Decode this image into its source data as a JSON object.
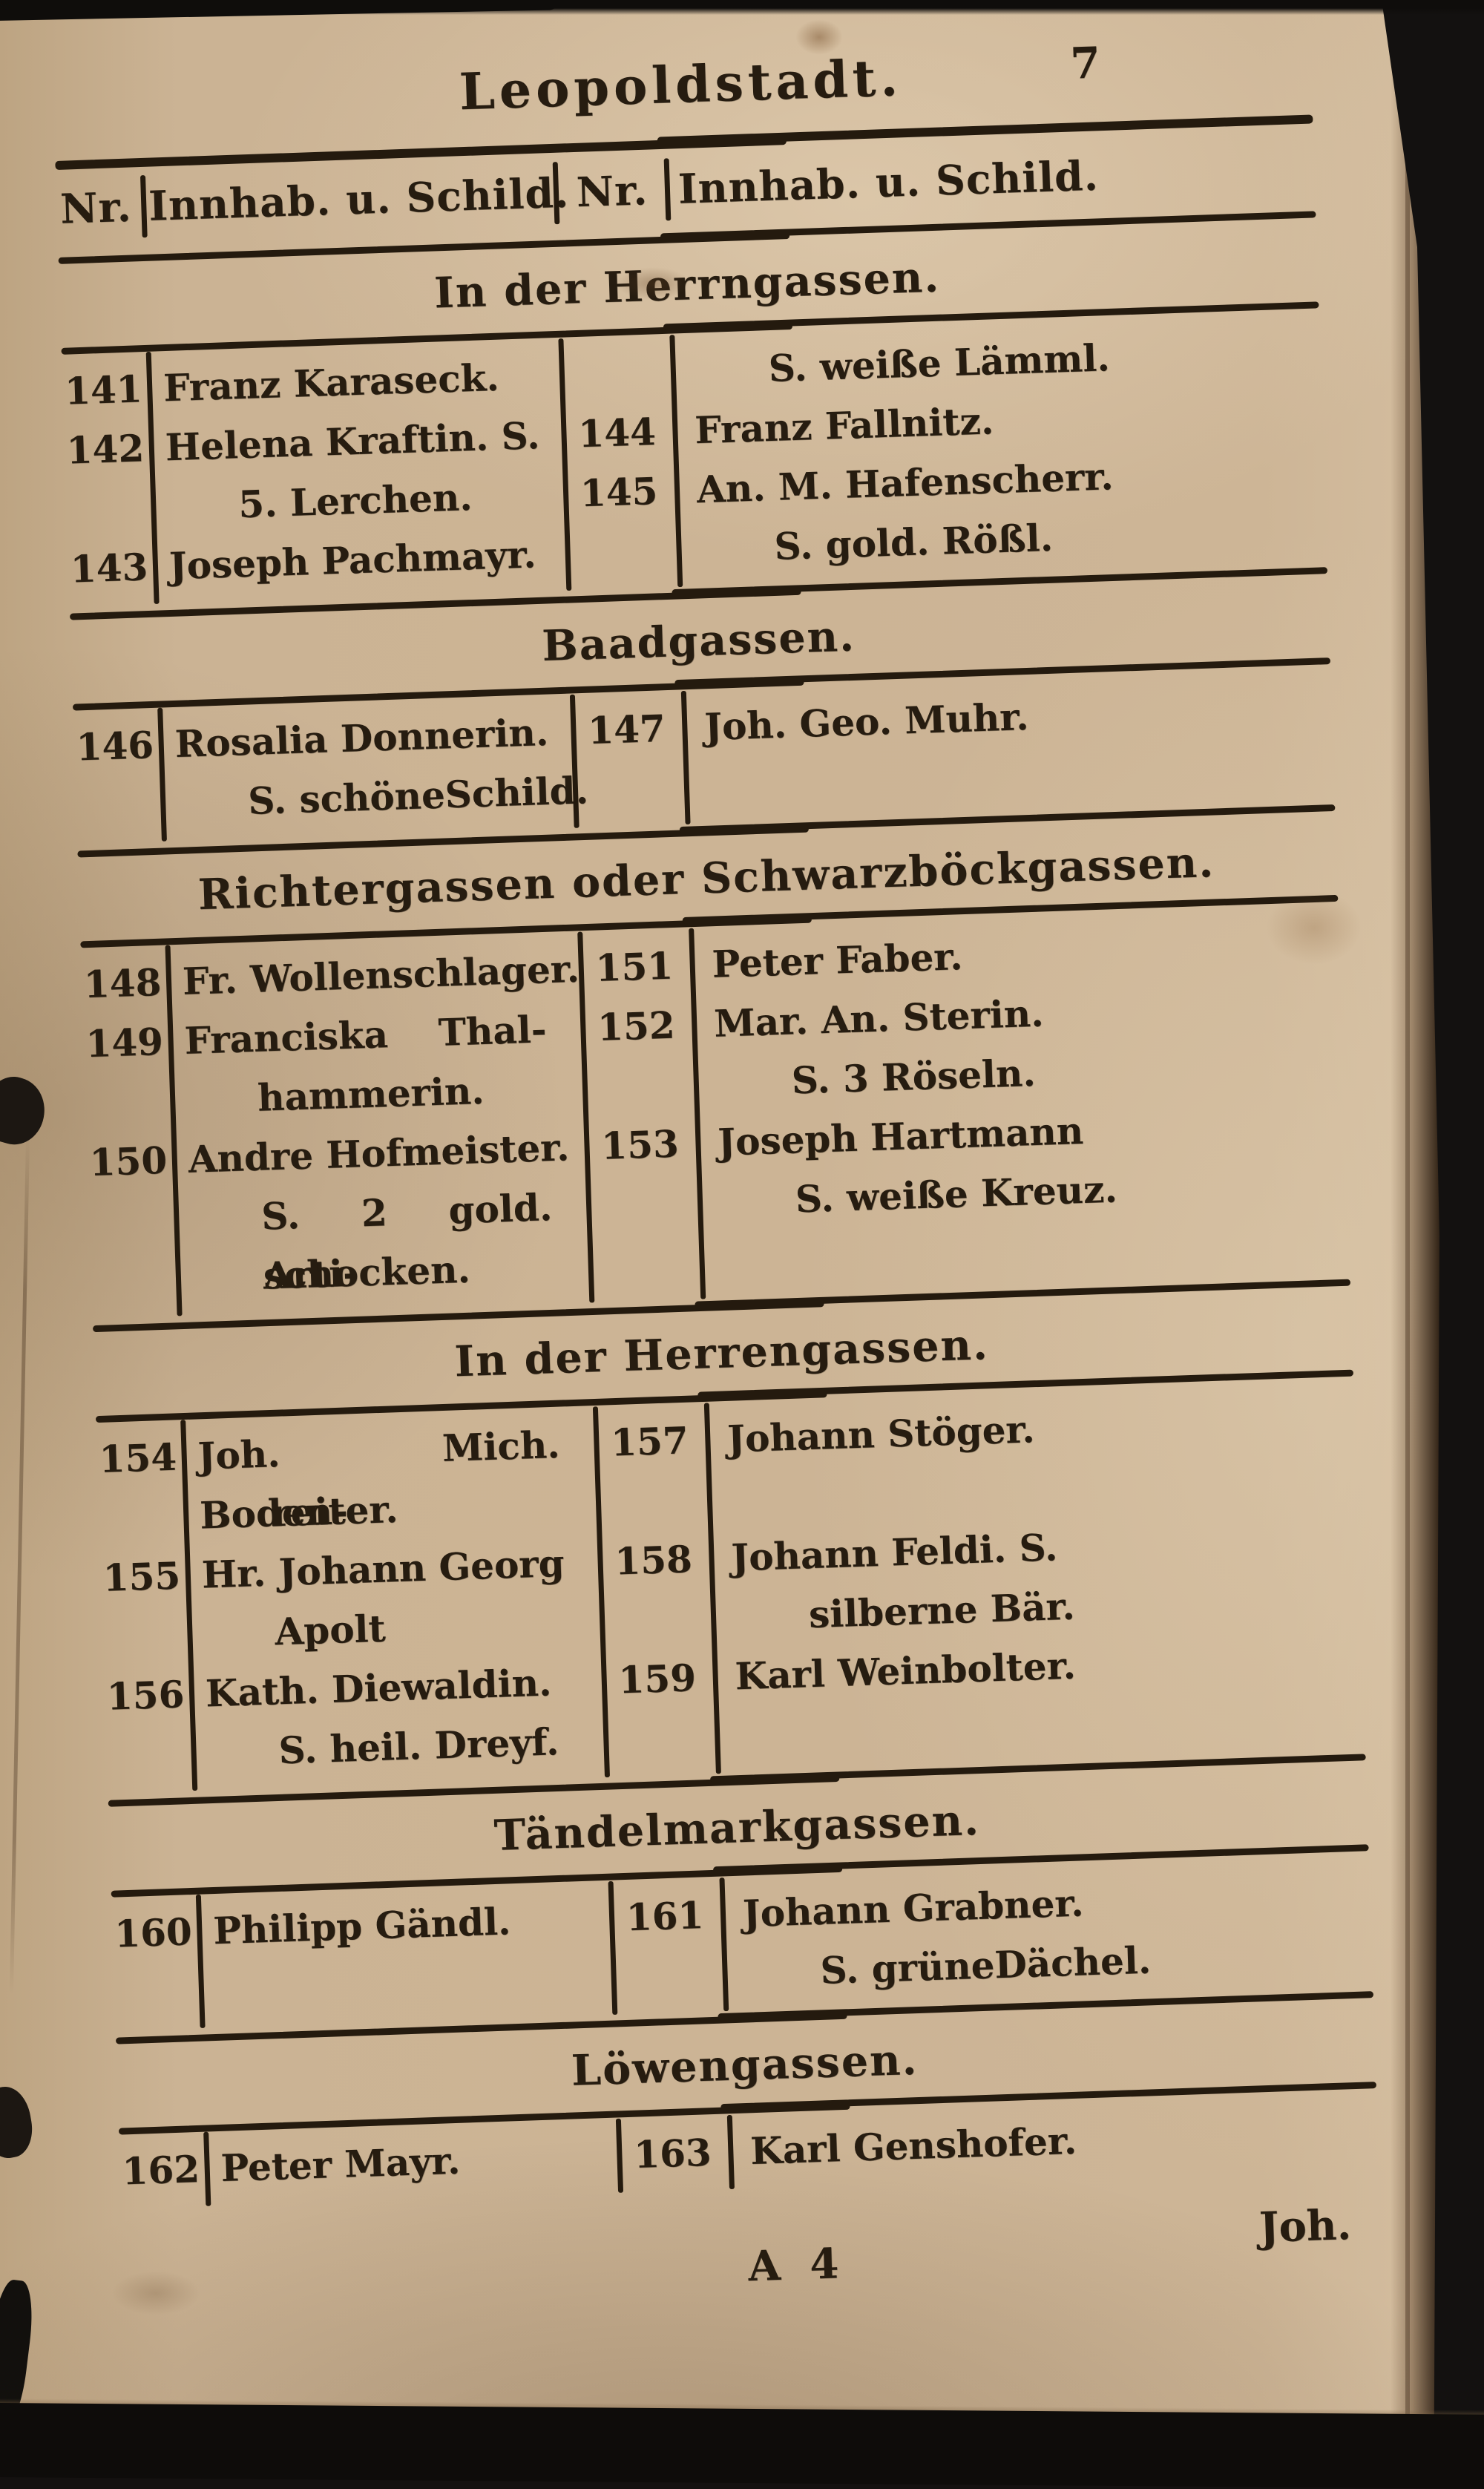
{
  "page": {
    "title": "Leopoldstadt.",
    "page_number": "7",
    "signature_mark": "A 4",
    "catchword": "Joh."
  },
  "table_header": {
    "left_nr": "Nr.",
    "left_label": "Innhab. u. Schild.",
    "right_nr": "Nr.",
    "right_label": "Innhab. u. Schild."
  },
  "sections": [
    {
      "heading": "In der Herrngassen.",
      "rows": [
        {
          "l_nr": "141",
          "l_text": "Franz Karaseck.",
          "r_nr": "",
          "r_text": "S. weiße Lämml."
        },
        {
          "l_nr": "142",
          "l_text": "Helena Kraftin. S.",
          "r_nr": "144",
          "r_text": "Franz Fallnitz."
        },
        {
          "l_nr": "",
          "l_text": "5. Lerchen.",
          "r_nr": "145",
          "r_text": "An. M. Hafenscherr."
        },
        {
          "l_nr": "143",
          "l_text": "Joseph Pachmayr.",
          "r_nr": "",
          "r_text": "S. gold. Rößl."
        }
      ]
    },
    {
      "heading": "Baadgassen.",
      "rows": [
        {
          "l_nr": "146",
          "l_text": "Rosalia Donnerin.",
          "r_nr": "147",
          "r_text": "Joh. Geo. Muhr."
        },
        {
          "l_nr": "",
          "l_text": "S. schöneSchild.",
          "r_nr": "",
          "r_text": ""
        }
      ]
    },
    {
      "heading": "Richtergassen oder Schwarzböckgassen.",
      "rows": [
        {
          "l_nr": "148",
          "l_text": "Fr. Wollenschlager.",
          "r_nr": "151",
          "r_text": "Peter Faber."
        },
        {
          "l_nr": "149",
          "l_text": "Franciska Thal-",
          "r_nr": "152",
          "r_text": "Mar. An. Sterin."
        },
        {
          "l_nr": "",
          "l_text": "hammerin.",
          "r_nr": "",
          "r_text": "S. 3 Röseln."
        },
        {
          "l_nr": "150",
          "l_text": "Andre Hofmeister.",
          "r_nr": "153",
          "r_text": "Joseph Hartmann"
        },
        {
          "l_nr": "",
          "l_text": "S. 2 gold. Arti-",
          "r_nr": "",
          "r_text": "S. weiße Kreuz."
        },
        {
          "l_nr": "",
          "l_text": "schocken.",
          "r_nr": "",
          "r_text": ""
        }
      ]
    },
    {
      "heading": "In der Herrengassen.",
      "rows": [
        {
          "l_nr": "154",
          "l_text": "Joh. Mich. Boden-",
          "r_nr": "157",
          "r_text": "Johann Stöger."
        },
        {
          "l_nr": "",
          "l_text": "reiter.",
          "r_nr": "",
          "r_text": ""
        },
        {
          "l_nr": "155",
          "l_text": "Hr. Johann Georg",
          "r_nr": "158",
          "r_text": "Johann Feldi. S."
        },
        {
          "l_nr": "",
          "l_text": "Apolt",
          "r_nr": "",
          "r_text": "silberne Bär."
        },
        {
          "l_nr": "156",
          "l_text": "Kath. Diewaldin.",
          "r_nr": "159",
          "r_text": "Karl Weinbolter."
        },
        {
          "l_nr": "",
          "l_text": "S. heil. Dreyf.",
          "r_nr": "",
          "r_text": ""
        }
      ]
    },
    {
      "heading": "Tändelmarkgassen.",
      "rows": [
        {
          "l_nr": "160",
          "l_text": "Philipp Gändl.",
          "r_nr": "161",
          "r_text": "Johann Grabner."
        },
        {
          "l_nr": "",
          "l_text": "",
          "r_nr": "",
          "r_text": "S. grüneDächel."
        }
      ]
    },
    {
      "heading": "Löwengassen.",
      "rows": [
        {
          "l_nr": "162",
          "l_text": "Peter Mayr.",
          "r_nr": "163",
          "r_text": "Karl Genshofer."
        }
      ]
    }
  ],
  "colors": {
    "paper": "#cbb394",
    "ink": "#241a0e",
    "scan_background": "#141110",
    "page_edge_brown": "#6b5138"
  }
}
